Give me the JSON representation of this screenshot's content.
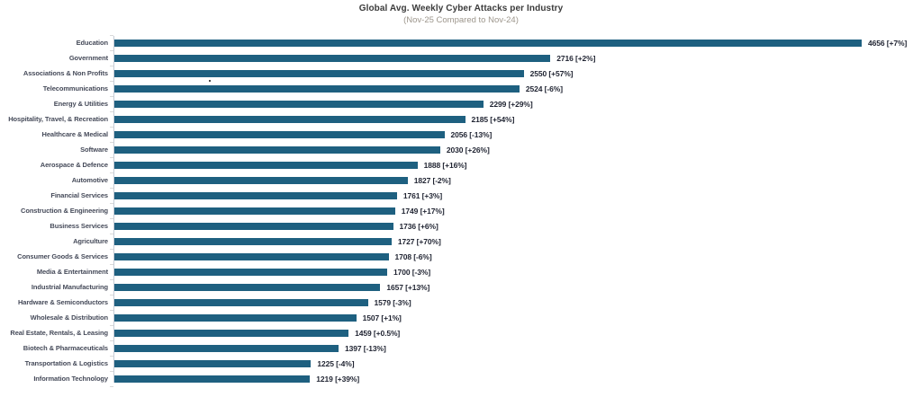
{
  "page": {
    "background": "#ffffff"
  },
  "chart_data": {
    "type": "bar",
    "orientation": "horizontal",
    "title": "Global Avg. Weekly Cyber Attacks per Industry",
    "subtitle": "(Nov-25 Compared to Nov-24)",
    "value_label_format": "{value} [{change}]",
    "bar_color": "#1e6080",
    "axis_color": "#c6ccd6",
    "grid": false,
    "legend": "none",
    "xlim": [
      0,
      4656
    ],
    "categories": [
      "Education",
      "Government",
      "Associations & Non Profits",
      "Telecommunications",
      "Energy & Utilities",
      "Hospitality, Travel, & Recreation",
      "Healthcare & Medical",
      "Software",
      "Aerospace & Defence",
      "Automotive",
      "Financial Services",
      "Construction & Engineering",
      "Business Services",
      "Agriculture",
      "Consumer Goods & Services",
      "Media & Entertainment",
      "Industrial Manufacturing",
      "Hardware & Semiconductors",
      "Wholesale & Distribution",
      "Real Estate, Rentals, & Leasing",
      "Biotech & Pharmaceuticals",
      "Transportation & Logistics",
      "Information Technology"
    ],
    "values": [
      4656,
      2716,
      2550,
      2524,
      2299,
      2185,
      2056,
      2030,
      1888,
      1827,
      1761,
      1749,
      1736,
      1727,
      1708,
      1700,
      1657,
      1579,
      1507,
      1459,
      1397,
      1225,
      1219
    ],
    "changes": [
      "+7%",
      "+2%",
      "+57%",
      "-6%",
      "+29%",
      "+54%",
      "-13%",
      "+26%",
      "+16%",
      "-2%",
      "+3%",
      "+17%",
      "+6%",
      "+70%",
      "-6%",
      "-3%",
      "+13%",
      "-3%",
      "+1%",
      "+0.5%",
      "-13%",
      "-4%",
      "+39%"
    ]
  }
}
